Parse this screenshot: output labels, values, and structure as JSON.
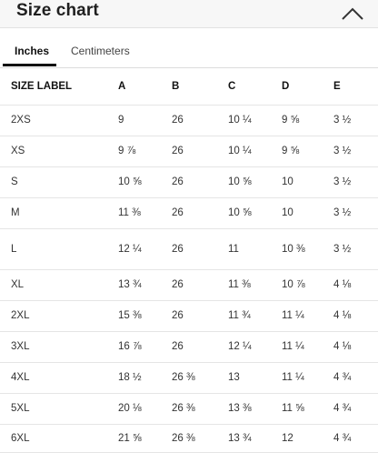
{
  "header": {
    "title": "Size chart",
    "collapse_icon": "chevron-up-icon"
  },
  "tabs": [
    {
      "label": "Inches",
      "active": true
    },
    {
      "label": "Centimeters",
      "active": false
    }
  ],
  "table": {
    "columns": [
      "SIZE LABEL",
      "A",
      "B",
      "C",
      "D",
      "E"
    ],
    "rows": [
      [
        "2XS",
        "9",
        "26",
        "10 ¼",
        "9 ⅝",
        "3 ½"
      ],
      [
        "XS",
        "9 ⅞",
        "26",
        "10 ¼",
        "9 ⅝",
        "3 ½"
      ],
      [
        "S",
        "10 ⅝",
        "26",
        "10 ⅝",
        "10",
        "3 ½"
      ],
      [
        "M",
        "11 ⅜",
        "26",
        "10 ⅝",
        "10",
        "3 ½"
      ],
      [
        "L",
        "12 ¼",
        "26",
        "11",
        "10 ⅜",
        "3 ½"
      ],
      [
        "XL",
        "13 ¾",
        "26",
        "11 ⅜",
        "10 ⅞",
        "4 ⅛"
      ],
      [
        "2XL",
        "15 ⅜",
        "26",
        "11 ¾",
        "11 ¼",
        "4 ⅛"
      ],
      [
        "3XL",
        "16 ⅞",
        "26",
        "12 ¼",
        "11 ¼",
        "4 ⅛"
      ],
      [
        "4XL",
        "18 ½",
        "26 ⅜",
        "13",
        "11 ¼",
        "4 ¾"
      ],
      [
        "5XL",
        "20 ⅛",
        "26 ⅜",
        "13 ⅜",
        "11 ⅝",
        "4 ¾"
      ],
      [
        "6XL",
        "21 ⅝",
        "26 ⅜",
        "13 ¾",
        "12",
        "4 ¾"
      ]
    ]
  }
}
